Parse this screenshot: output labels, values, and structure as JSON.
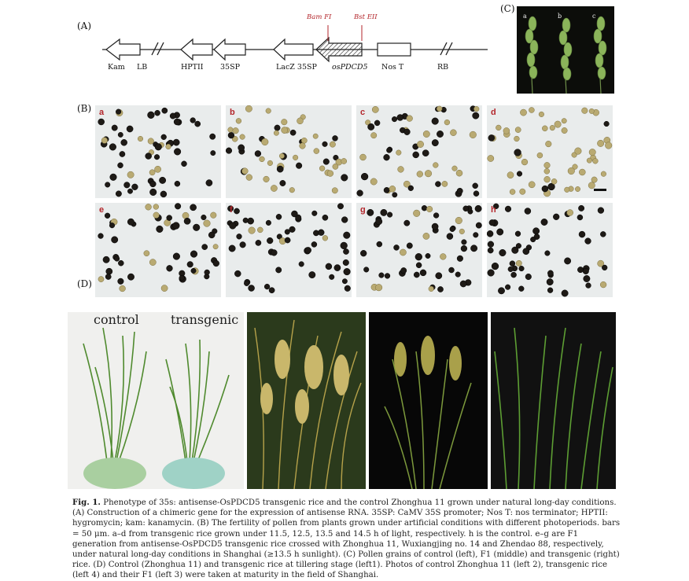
{
  "panels": {
    "A": "(A)",
    "B": "(B)",
    "C": "(C)",
    "D": "(D)"
  },
  "construct": {
    "elements": [
      "Kam",
      "LB",
      "HPTII",
      "35SP",
      "LacZ 35SP",
      "osPDCD5",
      "Nos T",
      "RB"
    ],
    "restriction_sites": [
      "Bam FI",
      "Bst EII"
    ]
  },
  "pollen_labels": [
    "a",
    "b",
    "c",
    "d",
    "e",
    "f",
    "g",
    "h"
  ],
  "spike_labels": [
    "a",
    "b",
    "c"
  ],
  "field_labels": {
    "control": "control",
    "transgenic": "transgenic"
  },
  "caption": {
    "title": "Fig. 1.",
    "text": "Phenotype of 35s: antisense-OsPDCD5 transgenic rice and the control Zhonghua 11 grown under natural long-day conditions. (A) Construction of a chimeric gene for the expression of antisense RNA. 35SP: CaMV 35S promoter; Nos T: nos terminator; HPTII: hygromycin; kam: kanamycin. (B) The fertility of pollen from plants grown under artificial conditions with different photoperiods. bars = 50 μm. a–d from transgenic rice grown under 11.5, 12.5, 13.5 and 14.5 h of light, respectively. h is the control. e–g are F1 generation from antisense-OsPDCD5 transgenic rice crossed with Zhonghua 11, Wuxiangjing no. 14 and Zhendao 88, respectively, under natural long-day conditions in Shanghai (≥13.5 h sunlight). (C) Pollen grains of control (left), F1 (middle) and transgenic (right) rice. (D) Control (Zhonghua 11) and transgenic rice at tillering stage (left1). Photos of control Zhonghua 11 (left 2), transgenic rice (left 4) and their F1 (left 3) were taken at maturity in the field of Shanghai."
  }
}
